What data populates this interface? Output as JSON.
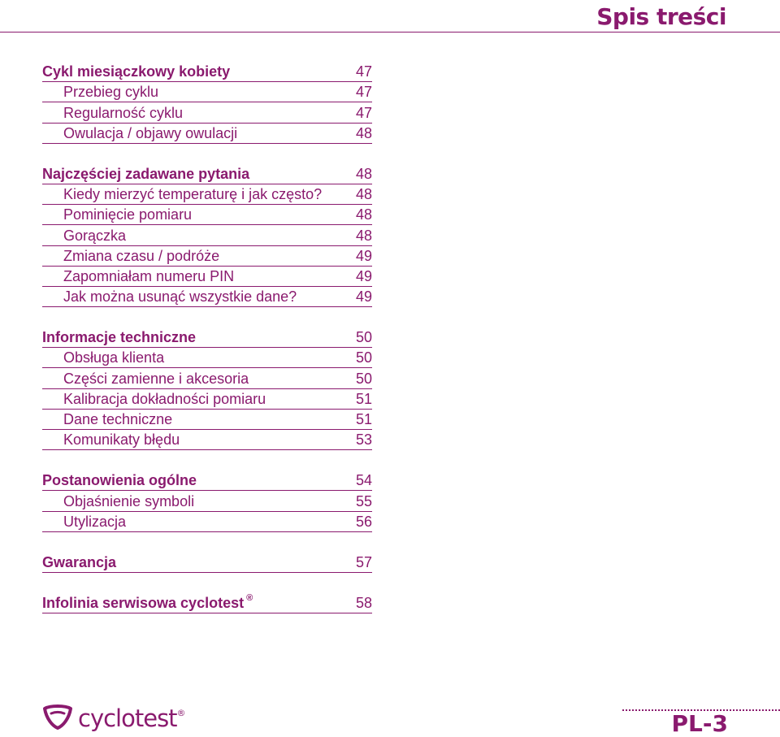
{
  "header": {
    "title": "Spis treści"
  },
  "toc": {
    "sections": [
      {
        "title": "Cykl miesiączkowy kobiety",
        "page": "47",
        "items": [
          {
            "label": "Przebieg cyklu",
            "page": "47"
          },
          {
            "label": "Regularność cyklu",
            "page": "47"
          },
          {
            "label": "Owulacja / objawy owulacji",
            "page": "48"
          }
        ]
      },
      {
        "title": "Najczęściej zadawane pytania",
        "page": "48",
        "items": [
          {
            "label": "Kiedy mierzyć temperaturę i jak często?",
            "page": "48"
          },
          {
            "label": "Pominięcie pomiaru",
            "page": "48"
          },
          {
            "label": "Gorączka",
            "page": "48"
          },
          {
            "label": "Zmiana czasu / podróże",
            "page": "49"
          },
          {
            "label": "Zapomniałam numeru PIN",
            "page": "49"
          },
          {
            "label": "Jak można usunąć wszystkie dane?",
            "page": "49"
          }
        ]
      },
      {
        "title": "Informacje techniczne",
        "page": "50",
        "items": [
          {
            "label": "Obsługa klienta",
            "page": "50"
          },
          {
            "label": "Części zamienne i akcesoria",
            "page": "50"
          },
          {
            "label": "Kalibracja dokładności pomiaru",
            "page": "51"
          },
          {
            "label": "Dane techniczne",
            "page": "51"
          },
          {
            "label": "Komunikaty błędu",
            "page": "53"
          }
        ]
      },
      {
        "title": "Postanowienia ogólne",
        "page": "54",
        "items": [
          {
            "label": "Objaśnienie symboli",
            "page": "55"
          },
          {
            "label": "Utylizacja",
            "page": "56"
          }
        ]
      },
      {
        "title": "Gwarancja",
        "page": "57",
        "items": []
      },
      {
        "title": "Infolinia serwisowa cyclotest",
        "title_reg": "®",
        "page": "58",
        "items": []
      }
    ]
  },
  "footer": {
    "brand": "cyclotest",
    "brand_reg": "®",
    "logo_icon": "cyclotest-logo-icon",
    "page_label": "PL-3"
  },
  "colors": {
    "accent": "#8a1a6e"
  }
}
